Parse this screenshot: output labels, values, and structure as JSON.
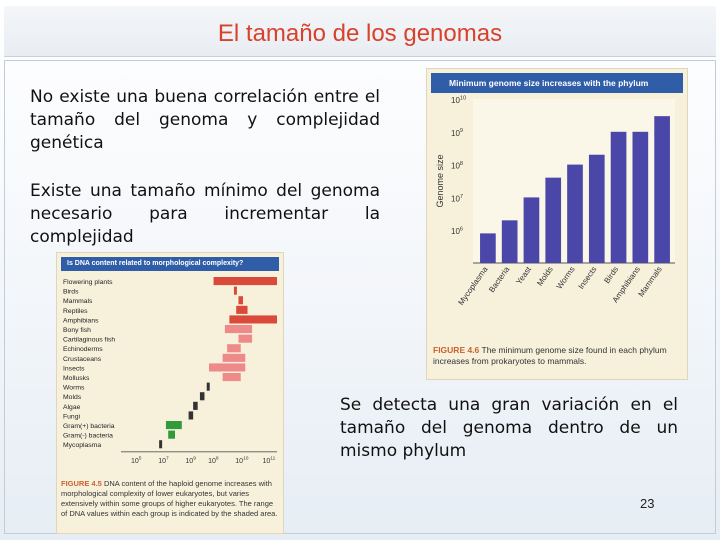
{
  "slide": {
    "title": "El tamaño de los genomas",
    "paragraph_1": "No existe una buena correlación entre el tamaño del genoma y complejidad genética",
    "paragraph_2": "Existe una tamaño mínimo del genoma necesario para incrementar la complejidad",
    "paragraph_3": "Se detecta una gran variación en el tamaño del genoma dentro de un mismo phylum",
    "page_number": "23"
  },
  "figure_right": {
    "header": "Minimum genome size increases with the phylum",
    "caption_lead": "FIGURE 4.6",
    "caption_text": "The minimum genome size found in each phylum increases from prokaryotes to mammals.",
    "colors": {
      "header": "#2f5da8",
      "bars": "#4a47a8",
      "background": "#f7f1dc"
    }
  },
  "figure_left": {
    "header": "Is DNA content related to morphological complexity?",
    "caption_lead": "FIGURE 4.5",
    "caption_text": "DNA content of the haploid genome increases with morphological complexity of lower eukaryotes, but varies extensively within some groups of higher eukaryotes. The range of DNA values within each group is indicated by the shaded area.",
    "colors": {
      "high": "#d94a3a",
      "mid": "#ee8a8a",
      "low": "#333333",
      "bacteria": "#2f9b3a"
    }
  },
  "chart_data": [
    {
      "type": "bar",
      "title": "Minimum genome size increases with the phylum",
      "ylabel": "Genome size",
      "yscale": "log",
      "ylim": [
        100000,
        10000000000
      ],
      "yticks": [
        "10^6",
        "10^7",
        "10^8",
        "10^9",
        "10^10"
      ],
      "categories": [
        "Mycoplasma",
        "Bacteria",
        "Yeast",
        "Molds",
        "Worms",
        "Insects",
        "Birds",
        "Amphibians",
        "Mammals"
      ],
      "values": [
        800000,
        2000000,
        10000000,
        40000000,
        100000000,
        200000000,
        1000000000,
        1000000000,
        3000000000
      ]
    },
    {
      "type": "range",
      "title": "Is DNA content related to morphological complexity?",
      "xscale": "log",
      "xticks": [
        "10^5",
        "10^7",
        "10^9",
        "10^8",
        "10^10",
        "10^11"
      ],
      "categories": [
        "Flowering plants",
        "Birds",
        "Mammals",
        "Reptiles",
        "Amphibians",
        "Bony fish",
        "Cartilaginous fish",
        "Echinoderms",
        "Crustaceans",
        "Insects",
        "Mollusks",
        "Worms",
        "Molds",
        "Algae",
        "Fungi",
        "Gram(+) bacteria",
        "Gram(-) bacteria",
        "Mycoplasma"
      ],
      "ranges": [
        [
          8.2,
          11.0
        ],
        [
          9.1,
          9.2
        ],
        [
          9.3,
          9.5
        ],
        [
          9.2,
          9.7
        ],
        [
          8.9,
          11.0
        ],
        [
          8.7,
          9.9
        ],
        [
          9.3,
          9.9
        ],
        [
          8.8,
          9.4
        ],
        [
          8.6,
          9.6
        ],
        [
          8.0,
          9.6
        ],
        [
          8.6,
          9.4
        ],
        [
          7.9,
          8.0
        ],
        [
          7.6,
          7.8
        ],
        [
          7.3,
          7.5
        ],
        [
          7.1,
          7.3
        ],
        [
          6.1,
          6.8
        ],
        [
          6.2,
          6.5
        ],
        [
          5.8,
          5.9
        ]
      ]
    }
  ]
}
